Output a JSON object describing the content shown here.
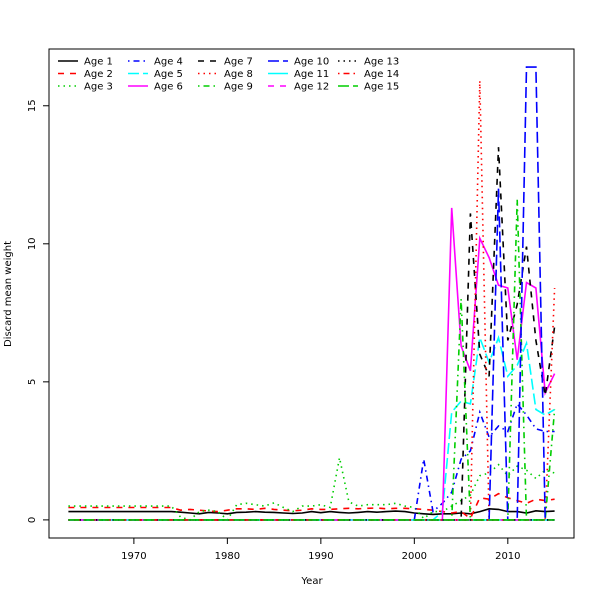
{
  "chart_data": {
    "type": "line",
    "title": "",
    "xlabel": "Year",
    "ylabel": "Discard mean weight",
    "xlim": [
      1960.92,
      2017.08
    ],
    "ylim": [
      -0.656,
      17.056
    ],
    "xticks": [
      1970,
      1980,
      1990,
      2000,
      2010
    ],
    "yticks": [
      0,
      5,
      10,
      15
    ],
    "grid": false,
    "legend_placement": "top-left",
    "x": [
      1963,
      1964,
      1965,
      1966,
      1967,
      1968,
      1969,
      1970,
      1971,
      1972,
      1973,
      1974,
      1975,
      1976,
      1977,
      1978,
      1979,
      1980,
      1981,
      1982,
      1983,
      1984,
      1985,
      1986,
      1987,
      1988,
      1989,
      1990,
      1991,
      1992,
      1993,
      1994,
      1995,
      1996,
      1997,
      1998,
      1999,
      2000,
      2001,
      2002,
      2003,
      2004,
      2005,
      2006,
      2007,
      2008,
      2009,
      2010,
      2011,
      2012,
      2013,
      2014,
      2015
    ],
    "series": [
      {
        "name": "Age 1",
        "color": "#000000",
        "lty": "solid",
        "values": [
          0.3,
          0.3,
          0.3,
          0.3,
          0.3,
          0.3,
          0.3,
          0.3,
          0.3,
          0.3,
          0.3,
          0.3,
          0.28,
          0.25,
          0.22,
          0.27,
          0.25,
          0.22,
          0.27,
          0.28,
          0.3,
          0.28,
          0.27,
          0.25,
          0.23,
          0.25,
          0.3,
          0.26,
          0.3,
          0.27,
          0.25,
          0.27,
          0.3,
          0.28,
          0.3,
          0.32,
          0.3,
          0.25,
          0.22,
          0.2,
          0.22,
          0.22,
          0.25,
          0.22,
          0.3,
          0.4,
          0.38,
          0.3,
          0.3,
          0.25,
          0.33,
          0.3,
          0.32
        ]
      },
      {
        "name": "Age 2",
        "color": "#ff0000",
        "lty": "dashed",
        "values": [
          0.45,
          0.45,
          0.45,
          0.45,
          0.45,
          0.45,
          0.45,
          0.45,
          0.45,
          0.45,
          0.45,
          0.45,
          0.35,
          0.38,
          0.35,
          0.32,
          0.3,
          0.35,
          0.4,
          0.4,
          0.38,
          0.42,
          0.38,
          0.35,
          0.33,
          0.35,
          0.4,
          0.38,
          0.38,
          0.4,
          0.42,
          0.4,
          0.42,
          0.43,
          0.4,
          0.42,
          0.42,
          0.4,
          0.38,
          0.35,
          0.3,
          0.25,
          0.3,
          0.05,
          0.8,
          0.75,
          0.95,
          0.8,
          0.7,
          0.6,
          0.75,
          0.7,
          0.75
        ]
      },
      {
        "name": "Age 3",
        "color": "#00cd00",
        "lty": "dotted",
        "values": [
          0.5,
          0.5,
          0.5,
          0.5,
          0.5,
          0.5,
          0.5,
          0.5,
          0.5,
          0.5,
          0.5,
          0.5,
          0.1,
          0.0,
          0.3,
          0.35,
          0.3,
          0.0,
          0.55,
          0.6,
          0.55,
          0.5,
          0.62,
          0.45,
          0.3,
          0.5,
          0.5,
          0.55,
          0.45,
          2.25,
          0.65,
          0.5,
          0.55,
          0.55,
          0.55,
          0.6,
          0.5,
          0.45,
          0.05,
          0.3,
          0.3,
          0.5,
          0.7,
          0.9,
          1.6,
          1.7,
          2.0,
          1.6,
          1.95,
          1.8,
          1.5,
          1.8,
          1.7
        ]
      },
      {
        "name": "Age 4",
        "color": "#0000ff",
        "lty": "dotdash",
        "values": [
          0,
          0,
          0,
          0,
          0,
          0,
          0,
          0,
          0,
          0,
          0,
          0,
          0,
          0,
          0,
          0,
          0,
          0,
          0,
          0,
          0,
          0,
          0,
          0,
          0,
          0,
          0,
          0,
          0,
          0,
          0,
          0,
          0,
          0,
          0,
          0,
          0,
          0,
          2.2,
          0.3,
          0.6,
          1.0,
          2.2,
          2.5,
          3.9,
          3.0,
          3.4,
          3.2,
          4.2,
          3.8,
          3.3,
          3.2,
          3.2
        ]
      },
      {
        "name": "Age 5",
        "color": "#00ffff",
        "lty": "longdash",
        "values": [
          0,
          0,
          0,
          0,
          0,
          0,
          0,
          0,
          0,
          0,
          0,
          0,
          0,
          0,
          0,
          0,
          0,
          0,
          0,
          0,
          0,
          0,
          0,
          0,
          0,
          0,
          0,
          0,
          0,
          0,
          0,
          0,
          0,
          0,
          0,
          0,
          0,
          0,
          0,
          0,
          0.3,
          3.9,
          4.3,
          4.2,
          6.6,
          5.7,
          6.6,
          5.2,
          5.6,
          6.4,
          4.0,
          3.8,
          4.0
        ]
      },
      {
        "name": "Age 6",
        "color": "#ff00ff",
        "lty": "solid",
        "values": [
          0,
          0,
          0,
          0,
          0,
          0,
          0,
          0,
          0,
          0,
          0,
          0,
          0,
          0,
          0,
          0,
          0,
          0,
          0,
          0,
          0,
          0,
          0,
          0,
          0,
          0,
          0,
          0,
          0,
          0,
          0,
          0,
          0,
          0,
          0,
          0,
          0,
          0,
          0,
          0,
          0,
          11.3,
          6.3,
          5.4,
          10.2,
          9.5,
          8.5,
          8.4,
          5.8,
          8.6,
          8.4,
          4.6,
          5.3
        ]
      },
      {
        "name": "Age 7",
        "color": "#000000",
        "lty": "dashed",
        "values": [
          0,
          0,
          0,
          0,
          0,
          0,
          0,
          0,
          0,
          0,
          0,
          0,
          0,
          0,
          0,
          0,
          0,
          0,
          0,
          0,
          0,
          0,
          0,
          0,
          0,
          0,
          0,
          0,
          0,
          0,
          0,
          0,
          0,
          0,
          0,
          0,
          0,
          0,
          0,
          0,
          0,
          0,
          0,
          11.1,
          6.0,
          5.2,
          13.5,
          6.5,
          7.8,
          9.9,
          6.5,
          4.5,
          7.0
        ]
      },
      {
        "name": "Age 8",
        "color": "#ff0000",
        "lty": "dotted",
        "values": [
          0,
          0,
          0,
          0,
          0,
          0,
          0,
          0,
          0,
          0,
          0,
          0,
          0,
          0,
          0,
          0,
          0,
          0,
          0,
          0,
          0,
          0,
          0,
          0,
          0,
          0,
          0,
          0,
          0,
          0,
          0,
          0,
          0,
          0,
          0,
          0,
          0,
          0,
          0,
          0,
          0,
          0,
          0,
          0,
          15.9,
          0,
          0,
          0,
          0,
          0,
          0,
          0,
          8.4
        ]
      },
      {
        "name": "Age 9",
        "color": "#00cd00",
        "lty": "dotdash",
        "values": [
          0,
          0,
          0,
          0,
          0,
          0,
          0,
          0,
          0,
          0,
          0,
          0,
          0,
          0,
          0,
          0,
          0,
          0,
          0,
          0,
          0,
          0,
          0,
          0,
          0,
          0,
          0,
          0,
          0,
          0,
          0,
          0,
          0,
          0,
          0,
          0,
          0,
          0,
          0,
          0,
          0,
          0,
          8.0,
          0,
          0,
          0,
          0,
          0,
          11.6,
          0,
          0,
          0,
          4.0
        ]
      },
      {
        "name": "Age 10",
        "color": "#0000ff",
        "lty": "longdash",
        "values": [
          0,
          0,
          0,
          0,
          0,
          0,
          0,
          0,
          0,
          0,
          0,
          0,
          0,
          0,
          0,
          0,
          0,
          0,
          0,
          0,
          0,
          0,
          0,
          0,
          0,
          0,
          0,
          0,
          0,
          0,
          0,
          0,
          0,
          0,
          0,
          0,
          0,
          0,
          0,
          0,
          0,
          0,
          0,
          0,
          0,
          0,
          12.0,
          0,
          0,
          16.4,
          16.4,
          0,
          0
        ]
      },
      {
        "name": "Age 11",
        "color": "#00ffff",
        "lty": "solid",
        "values": [
          0,
          0,
          0,
          0,
          0,
          0,
          0,
          0,
          0,
          0,
          0,
          0,
          0,
          0,
          0,
          0,
          0,
          0,
          0,
          0,
          0,
          0,
          0,
          0,
          0,
          0,
          0,
          0,
          0,
          0,
          0,
          0,
          0,
          0,
          0,
          0,
          0,
          0,
          0,
          0,
          0,
          0,
          0,
          0,
          0,
          0,
          0,
          0,
          0,
          0,
          0,
          0,
          0
        ]
      },
      {
        "name": "Age 12",
        "color": "#ff00ff",
        "lty": "dashed",
        "values": [
          0,
          0,
          0,
          0,
          0,
          0,
          0,
          0,
          0,
          0,
          0,
          0,
          0,
          0,
          0,
          0,
          0,
          0,
          0,
          0,
          0,
          0,
          0,
          0,
          0,
          0,
          0,
          0,
          0,
          0,
          0,
          0,
          0,
          0,
          0,
          0,
          0,
          0,
          0,
          0,
          0,
          0,
          0,
          0,
          0,
          0,
          0,
          0,
          0,
          0,
          0,
          0,
          0
        ]
      },
      {
        "name": "Age 13",
        "color": "#000000",
        "lty": "dotted",
        "values": [
          0,
          0,
          0,
          0,
          0,
          0,
          0,
          0,
          0,
          0,
          0,
          0,
          0,
          0,
          0,
          0,
          0,
          0,
          0,
          0,
          0,
          0,
          0,
          0,
          0,
          0,
          0,
          0,
          0,
          0,
          0,
          0,
          0,
          0,
          0,
          0,
          0,
          0,
          0,
          0,
          0,
          0,
          0,
          0,
          0,
          0,
          0,
          0,
          0,
          0,
          0,
          0,
          0
        ]
      },
      {
        "name": "Age 14",
        "color": "#ff0000",
        "lty": "dotdash",
        "values": [
          0,
          0,
          0,
          0,
          0,
          0,
          0,
          0,
          0,
          0,
          0,
          0,
          0,
          0,
          0,
          0,
          0,
          0,
          0,
          0,
          0,
          0,
          0,
          0,
          0,
          0,
          0,
          0,
          0,
          0,
          0,
          0,
          0,
          0,
          0,
          0,
          0,
          0,
          0,
          0,
          0,
          0,
          0,
          0,
          0,
          0,
          0,
          0,
          0,
          0,
          0,
          0,
          0
        ]
      },
      {
        "name": "Age 15",
        "color": "#00cd00",
        "lty": "longdash",
        "values": [
          0,
          0,
          0,
          0,
          0,
          0,
          0,
          0,
          0,
          0,
          0,
          0,
          0,
          0,
          0,
          0,
          0,
          0,
          0,
          0,
          0,
          0,
          0,
          0,
          0,
          0,
          0,
          0,
          0,
          0,
          0,
          0,
          0,
          0,
          0,
          0,
          0,
          0,
          0,
          0,
          0,
          0,
          0,
          0,
          0,
          0,
          0,
          0,
          0,
          0,
          0,
          0,
          0
        ]
      }
    ]
  }
}
